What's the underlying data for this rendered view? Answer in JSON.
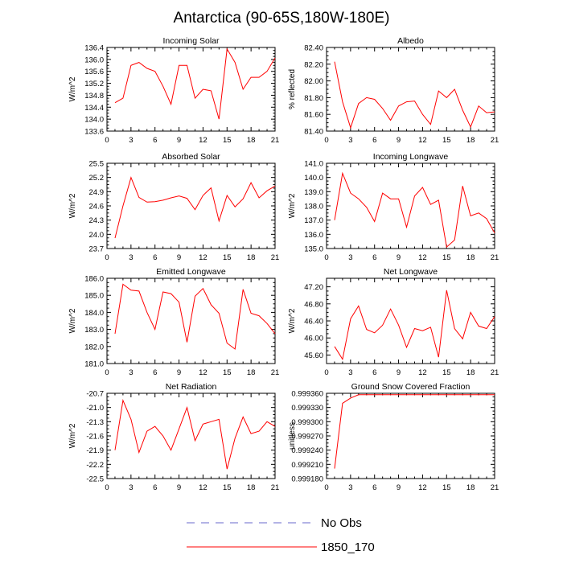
{
  "figure": {
    "title": "Antarctica (90-65S,180W-180E)",
    "legend": [
      {
        "label": "No Obs",
        "color": "#6a6acd",
        "dash": "dashed"
      },
      {
        "label": "1850_170",
        "color": "#ff0000",
        "dash": "solid"
      }
    ]
  },
  "chart_data": [
    {
      "type": "line",
      "title": "Incoming Solar",
      "xlabel": "",
      "ylabel": "W/m^2",
      "xlim": [
        0,
        21
      ],
      "ylim": [
        133.6,
        136.4
      ],
      "xticks": [
        "0",
        "3",
        "6",
        "9",
        "12",
        "15",
        "18",
        "21"
      ],
      "yticks": [
        "133.6",
        "134.0",
        "134.4",
        "134.8",
        "135.2",
        "135.6",
        "136.0",
        "136.4"
      ],
      "series": [
        {
          "name": "1850_170",
          "color": "#ff0000",
          "x": [
            1,
            2,
            3,
            4,
            5,
            6,
            7,
            8,
            9,
            10,
            11,
            12,
            13,
            14,
            15,
            16,
            17,
            18,
            19,
            20,
            21
          ],
          "y": [
            134.55,
            134.7,
            135.8,
            135.9,
            135.7,
            135.6,
            135.1,
            134.5,
            135.8,
            135.8,
            134.7,
            135.0,
            134.95,
            134.0,
            136.35,
            135.9,
            135.0,
            135.4,
            135.4,
            135.6,
            136.05
          ]
        }
      ]
    },
    {
      "type": "line",
      "title": "Albedo",
      "xlabel": "",
      "ylabel": "% reflected",
      "xlim": [
        0,
        21
      ],
      "ylim": [
        81.4,
        82.4
      ],
      "xticks": [
        "0",
        "3",
        "6",
        "9",
        "12",
        "15",
        "18",
        "21"
      ],
      "yticks": [
        "81.40",
        "81.60",
        "81.80",
        "82.00",
        "82.20",
        "82.40"
      ],
      "series": [
        {
          "name": "1850_170",
          "color": "#ff0000",
          "x": [
            1,
            2,
            3,
            4,
            5,
            6,
            7,
            8,
            9,
            10,
            11,
            12,
            13,
            14,
            15,
            16,
            17,
            18,
            19,
            20,
            21
          ],
          "y": [
            82.23,
            81.75,
            81.44,
            81.73,
            81.8,
            81.78,
            81.67,
            81.53,
            81.7,
            81.75,
            81.76,
            81.6,
            81.48,
            81.88,
            81.8,
            81.9,
            81.65,
            81.45,
            81.7,
            81.62,
            81.63
          ]
        }
      ]
    },
    {
      "type": "line",
      "title": "Absorbed Solar",
      "xlabel": "",
      "ylabel": "W/m^2",
      "xlim": [
        0,
        21
      ],
      "ylim": [
        23.7,
        25.5
      ],
      "xticks": [
        "0",
        "3",
        "6",
        "9",
        "12",
        "15",
        "18",
        "21"
      ],
      "yticks": [
        "23.7",
        "24.0",
        "24.3",
        "24.6",
        "24.9",
        "25.2",
        "25.5"
      ],
      "series": [
        {
          "name": "1850_170",
          "color": "#ff0000",
          "x": [
            1,
            2,
            3,
            4,
            5,
            6,
            7,
            8,
            9,
            10,
            11,
            12,
            13,
            14,
            15,
            16,
            17,
            18,
            19,
            20,
            21
          ],
          "y": [
            23.92,
            24.6,
            25.2,
            24.78,
            24.68,
            24.69,
            24.72,
            24.77,
            24.81,
            24.76,
            24.52,
            24.82,
            24.98,
            24.28,
            24.82,
            24.58,
            24.75,
            25.09,
            24.77,
            24.92,
            25.02
          ]
        }
      ]
    },
    {
      "type": "line",
      "title": "Incoming Longwave",
      "xlabel": "",
      "ylabel": "W/m^2",
      "xlim": [
        0,
        21
      ],
      "ylim": [
        135.0,
        141.0
      ],
      "xticks": [
        "0",
        "3",
        "6",
        "9",
        "12",
        "15",
        "18",
        "21"
      ],
      "yticks": [
        "135.0",
        "136.0",
        "137.0",
        "138.0",
        "139.0",
        "140.0",
        "141.0"
      ],
      "series": [
        {
          "name": "1850_170",
          "color": "#ff0000",
          "x": [
            1,
            2,
            3,
            4,
            5,
            6,
            7,
            8,
            9,
            10,
            11,
            12,
            13,
            14,
            15,
            16,
            17,
            18,
            19,
            20,
            21
          ],
          "y": [
            137.0,
            140.3,
            138.9,
            138.5,
            137.9,
            136.9,
            138.9,
            138.5,
            138.5,
            136.5,
            138.7,
            139.3,
            138.1,
            138.4,
            135.1,
            135.6,
            139.4,
            137.3,
            137.5,
            137.1,
            136.1
          ]
        }
      ]
    },
    {
      "type": "line",
      "title": "Emitted Longwave",
      "xlabel": "",
      "ylabel": "W/m^2",
      "xlim": [
        0,
        21
      ],
      "ylim": [
        181.0,
        186.0
      ],
      "xticks": [
        "0",
        "3",
        "6",
        "9",
        "12",
        "15",
        "18",
        "21"
      ],
      "yticks": [
        "181.0",
        "182.0",
        "183.0",
        "184.0",
        "185.0",
        "186.0"
      ],
      "series": [
        {
          "name": "1850_170",
          "color": "#ff0000",
          "x": [
            1,
            2,
            3,
            4,
            5,
            6,
            7,
            8,
            9,
            10,
            11,
            12,
            13,
            14,
            15,
            16,
            17,
            18,
            19,
            20,
            21
          ],
          "y": [
            182.75,
            185.65,
            185.3,
            185.25,
            184.0,
            183.0,
            185.2,
            185.1,
            184.6,
            182.25,
            184.95,
            185.4,
            184.45,
            183.95,
            182.2,
            181.85,
            185.35,
            183.95,
            183.8,
            183.35,
            182.75
          ]
        }
      ]
    },
    {
      "type": "line",
      "title": "Net Longwave",
      "xlabel": "",
      "ylabel": "W/m^2",
      "xlim": [
        0,
        21
      ],
      "ylim": [
        45.4,
        47.4
      ],
      "xticks": [
        "0",
        "3",
        "6",
        "9",
        "12",
        "15",
        "18",
        "21"
      ],
      "yticks": [
        "45.60",
        "46.00",
        "46.40",
        "46.80",
        "47.20"
      ],
      "series": [
        {
          "name": "1850_170",
          "color": "#ff0000",
          "x": [
            1,
            2,
            3,
            4,
            5,
            6,
            7,
            8,
            9,
            10,
            11,
            12,
            13,
            14,
            15,
            16,
            17,
            18,
            19,
            20,
            21
          ],
          "y": [
            45.8,
            45.5,
            46.45,
            46.75,
            46.2,
            46.12,
            46.3,
            46.68,
            46.3,
            45.78,
            46.22,
            46.17,
            46.25,
            45.55,
            47.12,
            46.22,
            45.98,
            46.6,
            46.28,
            46.22,
            46.5
          ]
        }
      ]
    },
    {
      "type": "line",
      "title": "Net Radiation",
      "xlabel": "",
      "ylabel": "W/m^2",
      "xlim": [
        0,
        21
      ],
      "ylim": [
        -22.5,
        -20.7
      ],
      "xticks": [
        "0",
        "3",
        "6",
        "9",
        "12",
        "15",
        "18",
        "21"
      ],
      "yticks": [
        "-22.5",
        "-22.2",
        "-21.9",
        "-21.6",
        "-21.3",
        "-21.0",
        "-20.7"
      ],
      "series": [
        {
          "name": "1850_170",
          "color": "#ff0000",
          "x": [
            1,
            2,
            3,
            4,
            5,
            6,
            7,
            8,
            9,
            10,
            11,
            12,
            13,
            14,
            15,
            16,
            17,
            18,
            19,
            20,
            21
          ],
          "y": [
            -21.9,
            -20.85,
            -21.25,
            -21.95,
            -21.5,
            -21.4,
            -21.6,
            -21.9,
            -21.45,
            -21.0,
            -21.7,
            -21.35,
            -21.3,
            -21.25,
            -22.3,
            -21.65,
            -21.2,
            -21.55,
            -21.5,
            -21.3,
            -21.4
          ]
        }
      ]
    },
    {
      "type": "line",
      "title": "Ground Snow Covered Fraction",
      "xlabel": "",
      "ylabel": "unitless",
      "xlim": [
        0,
        21
      ],
      "ylim": [
        0.99918,
        0.99936
      ],
      "xticks": [
        "0",
        "3",
        "6",
        "9",
        "12",
        "15",
        "18",
        "21"
      ],
      "yticks": [
        "0.999180",
        "0.999210",
        "0.999240",
        "0.999270",
        "0.999300",
        "0.999330",
        "0.999360"
      ],
      "series": [
        {
          "name": "1850_170",
          "color": "#ff0000",
          "x": [
            1,
            2,
            3,
            4,
            5,
            6,
            7,
            8,
            9,
            10,
            11,
            12,
            13,
            14,
            15,
            16,
            17,
            18,
            19,
            20,
            21
          ],
          "y": [
            0.999201,
            0.999339,
            0.99935,
            0.999357,
            0.999357,
            0.999357,
            0.999357,
            0.999357,
            0.999357,
            0.999357,
            0.999357,
            0.999357,
            0.999357,
            0.999357,
            0.999357,
            0.999357,
            0.999357,
            0.999357,
            0.999357,
            0.999357,
            0.999357
          ]
        }
      ]
    }
  ]
}
